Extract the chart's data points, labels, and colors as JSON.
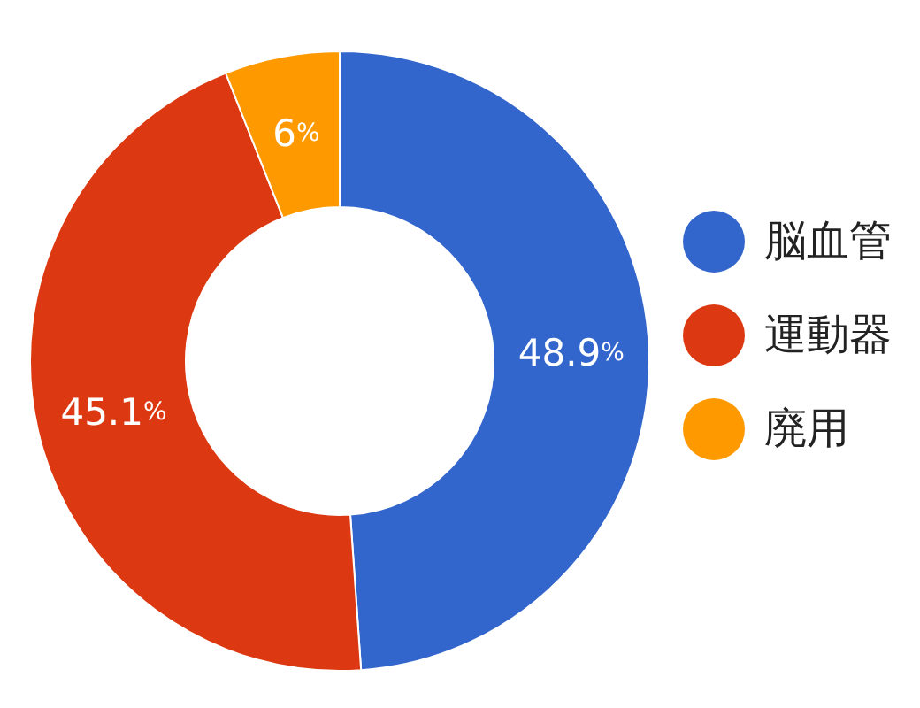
{
  "chart_data": {
    "type": "donut",
    "categories": [
      "脳血管",
      "運動器",
      "廃用"
    ],
    "values": [
      48.9,
      45.1,
      6
    ],
    "colors": [
      "#3366cc",
      "#dc3912",
      "#ff9900"
    ],
    "value_labels": [
      "48.9%",
      "45.1%",
      "6%"
    ],
    "legend": "right"
  }
}
